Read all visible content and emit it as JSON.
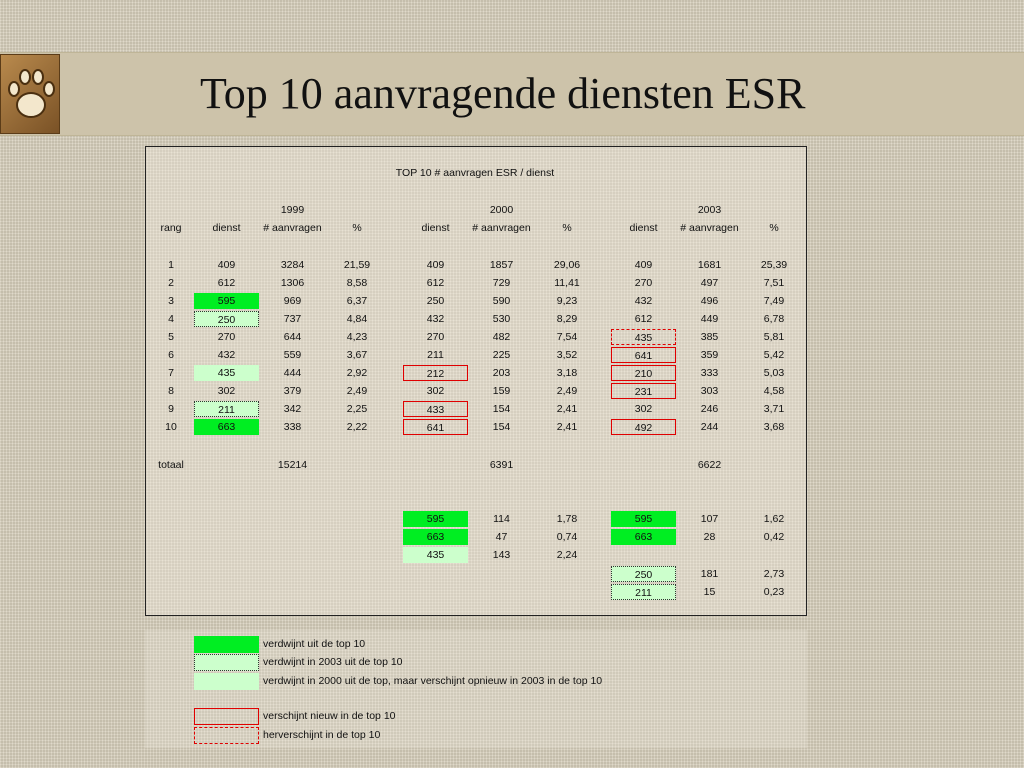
{
  "title": "Top 10 aanvragende diensten ESR",
  "table": {
    "caption": "TOP 10     # aanvragen ESR / dienst",
    "years": [
      "1999",
      "2000",
      "2003"
    ],
    "headers": {
      "rang": "rang",
      "dienst": "dienst",
      "aanvragen": "# aanvragen",
      "pct": "%"
    },
    "rows": [
      {
        "rang": "1",
        "d99": "409",
        "a99": "3284",
        "p99": "21,59",
        "d00": "409",
        "a00": "1857",
        "p00": "29,06",
        "d03": "409",
        "a03": "1681",
        "p03": "25,39"
      },
      {
        "rang": "2",
        "d99": "612",
        "a99": "1306",
        "p99": "8,58",
        "d00": "612",
        "a00": "729",
        "p00": "11,41",
        "d03": "270",
        "a03": "497",
        "p03": "7,51"
      },
      {
        "rang": "3",
        "d99": "595",
        "a99": "969",
        "p99": "6,37",
        "d00": "250",
        "a00": "590",
        "p00": "9,23",
        "d03": "432",
        "a03": "496",
        "p03": "7,49"
      },
      {
        "rang": "4",
        "d99": "250",
        "a99": "737",
        "p99": "4,84",
        "d00": "432",
        "a00": "530",
        "p00": "8,29",
        "d03": "612",
        "a03": "449",
        "p03": "6,78"
      },
      {
        "rang": "5",
        "d99": "270",
        "a99": "644",
        "p99": "4,23",
        "d00": "270",
        "a00": "482",
        "p00": "7,54",
        "d03": "435",
        "a03": "385",
        "p03": "5,81"
      },
      {
        "rang": "6",
        "d99": "432",
        "a99": "559",
        "p99": "3,67",
        "d00": "211",
        "a00": "225",
        "p00": "3,52",
        "d03": "641",
        "a03": "359",
        "p03": "5,42"
      },
      {
        "rang": "7",
        "d99": "435",
        "a99": "444",
        "p99": "2,92",
        "d00": "212",
        "a00": "203",
        "p00": "3,18",
        "d03": "210",
        "a03": "333",
        "p03": "5,03"
      },
      {
        "rang": "8",
        "d99": "302",
        "a99": "379",
        "p99": "2,49",
        "d00": "302",
        "a00": "159",
        "p00": "2,49",
        "d03": "231",
        "a03": "303",
        "p03": "4,58"
      },
      {
        "rang": "9",
        "d99": "211",
        "a99": "342",
        "p99": "2,25",
        "d00": "433",
        "a00": "154",
        "p00": "2,41",
        "d03": "302",
        "a03": "246",
        "p03": "3,71"
      },
      {
        "rang": "10",
        "d99": "663",
        "a99": "338",
        "p99": "2,22",
        "d00": "641",
        "a00": "154",
        "p00": "2,41",
        "d03": "492",
        "a03": "244",
        "p03": "3,68"
      }
    ],
    "totals": {
      "label": "totaal",
      "t99": "15214",
      "t00": "6391",
      "t03": "6622"
    },
    "extra_2000": [
      {
        "d": "595",
        "a": "114",
        "p": "1,78"
      },
      {
        "d": "663",
        "a": "47",
        "p": "0,74"
      },
      {
        "d": "435",
        "a": "143",
        "p": "2,24"
      }
    ],
    "extra_2003": [
      {
        "d": "595",
        "a": "107",
        "p": "1,62"
      },
      {
        "d": "663",
        "a": "28",
        "p": "0,42"
      },
      {
        "d": "250",
        "a": "181",
        "p": "2,73"
      },
      {
        "d": "211",
        "a": "15",
        "p": "0,23"
      }
    ]
  },
  "legend": [
    "verdwijnt uit de top 10",
    "verdwijnt in 2003 uit de top 10",
    "verdwijnt in 2000 uit de top, maar verschijnt opnieuw  in 2003 in de top 10",
    "verschijnt nieuw  in de top 10",
    "herverschijnt in de top 10"
  ],
  "colors": {
    "green": "#00ee22",
    "lightgreen": "#ccffcc",
    "red": "#e00000"
  },
  "icons": {
    "logo": "paw-print-icon"
  }
}
